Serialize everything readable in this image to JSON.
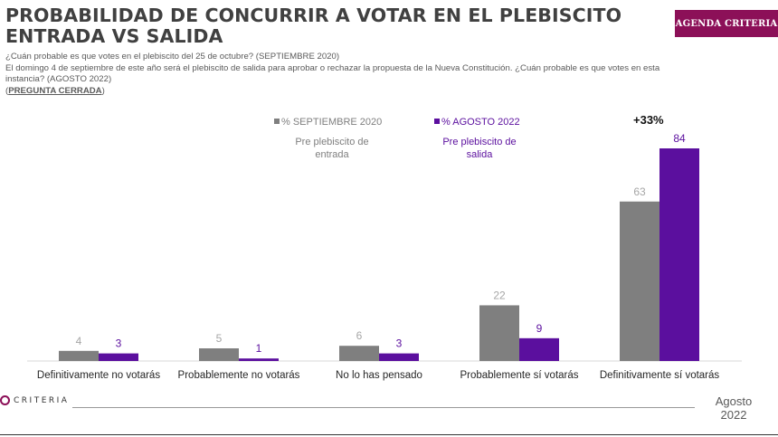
{
  "header": {
    "title_line1": "PROBABILIDAD DE CONCURRIR A VOTAR EN EL PLEBISCITO",
    "title_line2": "ENTRADA VS SALIDA",
    "badge": "AGENDA CRITERIA",
    "question1": "¿Cuán probable es que votes en el plebiscito del 25 de octubre? (SEPTIEMBRE 2020)",
    "question2": "El domingo 4 de septiembre de este año será el plebiscito de salida para aprobar o rechazar la propuesta de la Nueva Constitución. ¿Cuán probable es que votes en esta instancia? (AGOSTO 2022)",
    "note_open": "(",
    "note": "PREGUNTA CERRADA",
    "note_close": ")"
  },
  "legend": {
    "s1_label": "% SEPTIEMBRE 2020",
    "s1_sub": "Pre plebiscito de entrada",
    "s2_label": "% AGOSTO 2022",
    "s2_sub": "Pre plebiscito de salida"
  },
  "annotation": "+33%",
  "chart_data": {
    "type": "bar",
    "categories": [
      "Definitivamente no votarás",
      "Probablemente no votarás",
      "No lo has pensado",
      "Probablemente sí votarás",
      "Definitivamente sí votarás"
    ],
    "series": [
      {
        "name": "% SEPTIEMBRE 2020",
        "values": [
          4,
          5,
          6,
          22,
          63
        ],
        "color": "#7f7f7f"
      },
      {
        "name": "% AGOSTO 2022",
        "values": [
          3,
          1,
          3,
          9,
          84
        ],
        "color": "#5b0f9e"
      }
    ],
    "ylim": [
      0,
      84
    ],
    "grid": false
  },
  "footer": {
    "brand": "CRITERIA",
    "date_line1": "Agosto",
    "date_line2": "2022"
  }
}
